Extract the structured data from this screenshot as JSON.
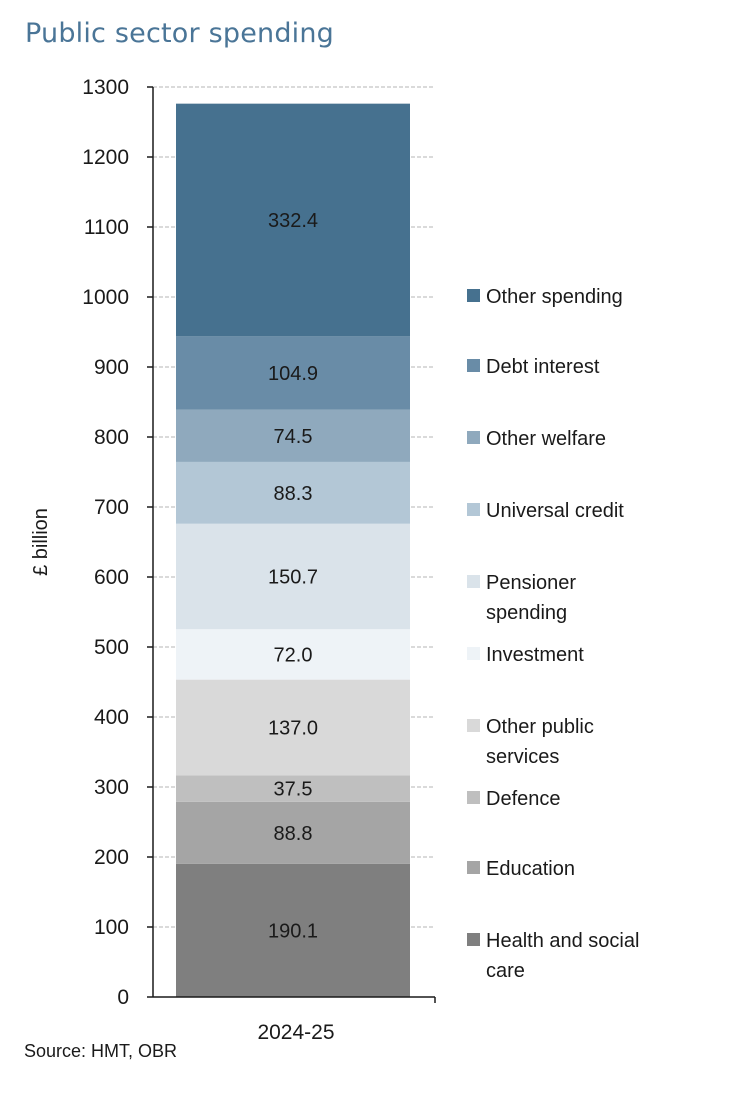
{
  "title": "Public sector spending",
  "source": "Source: HMT, OBR",
  "chart_data": {
    "type": "bar",
    "stacked": true,
    "title": "Public sector spending",
    "xlabel": "",
    "ylabel": "£ billion",
    "ylim": [
      0,
      1300
    ],
    "yticks": [
      0,
      100,
      200,
      300,
      400,
      500,
      600,
      700,
      800,
      900,
      1000,
      1100,
      1200,
      1300
    ],
    "categories": [
      "2024-25"
    ],
    "grid": "horizontal-dashed",
    "legend_position": "right",
    "series": [
      {
        "name": "Health and social care",
        "legend_lines": [
          "Health and social",
          "care"
        ],
        "values": [
          190.1
        ],
        "label": "190.1",
        "color": "#7f7f7f"
      },
      {
        "name": "Education",
        "legend_lines": [
          "Education"
        ],
        "values": [
          88.8
        ],
        "label": "88.8",
        "color": "#a5a5a5"
      },
      {
        "name": "Defence",
        "legend_lines": [
          "Defence"
        ],
        "values": [
          37.5
        ],
        "label": "37.5",
        "color": "#bfbfbf"
      },
      {
        "name": "Other public services",
        "legend_lines": [
          "Other public",
          "services"
        ],
        "values": [
          137.0
        ],
        "label": "137.0",
        "color": "#d9d9d9"
      },
      {
        "name": "Investment",
        "legend_lines": [
          "Investment"
        ],
        "values": [
          72.0
        ],
        "label": "72.0",
        "color": "#eef3f7"
      },
      {
        "name": "Pensioner spending",
        "legend_lines": [
          "Pensioner",
          "spending"
        ],
        "values": [
          150.7
        ],
        "label": "150.7",
        "color": "#dae3ea"
      },
      {
        "name": "Universal credit",
        "legend_lines": [
          "Universal credit"
        ],
        "values": [
          88.3
        ],
        "label": "88.3",
        "color": "#b3c7d6"
      },
      {
        "name": "Other welfare",
        "legend_lines": [
          "Other welfare"
        ],
        "values": [
          74.5
        ],
        "label": "74.5",
        "color": "#8fa9bd"
      },
      {
        "name": "Debt interest",
        "legend_lines": [
          "Debt interest"
        ],
        "values": [
          104.9
        ],
        "label": "104.9",
        "color": "#698ca7"
      },
      {
        "name": "Other spending",
        "legend_lines": [
          "Other spending"
        ],
        "values": [
          332.4
        ],
        "label": "332.4",
        "color": "#46718f"
      }
    ]
  }
}
